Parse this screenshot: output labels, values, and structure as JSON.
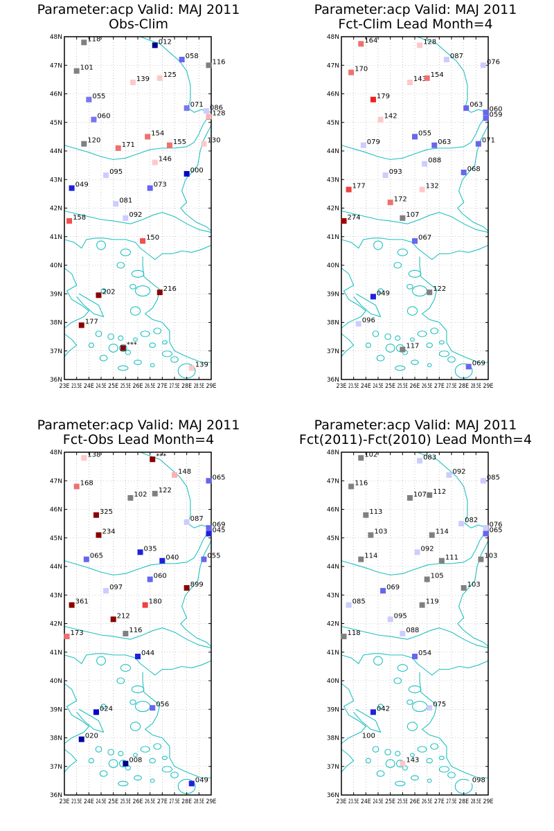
{
  "panels": [
    {
      "title_line1": "Parameter:acp Valid: MAJ 2011",
      "title_line2": "Obs-Clim",
      "chart_data": {
        "type": "scatter",
        "xlim": [
          23,
          29
        ],
        "ylim": [
          36,
          48
        ],
        "points": [
          {
            "lon": 23.8,
            "lat": 47.8,
            "label": "118",
            "color": "#808080"
          },
          {
            "lon": 26.7,
            "lat": 47.7,
            "label": "012",
            "color": "#00008b"
          },
          {
            "lon": 27.8,
            "lat": 47.2,
            "label": "058",
            "color": "#6666ee"
          },
          {
            "lon": 28.9,
            "lat": 47.0,
            "label": "116",
            "color": "#808080"
          },
          {
            "lon": 23.5,
            "lat": 46.8,
            "label": "101",
            "color": "#808080"
          },
          {
            "lon": 25.8,
            "lat": 46.4,
            "label": "139",
            "color": "#ffc8c8"
          },
          {
            "lon": 26.9,
            "lat": 46.55,
            "label": "125",
            "color": "#ffc8c8"
          },
          {
            "lon": 24.0,
            "lat": 45.8,
            "label": "055",
            "color": "#7777ee"
          },
          {
            "lon": 28.0,
            "lat": 45.5,
            "label": "071",
            "color": "#7777ee"
          },
          {
            "lon": 28.8,
            "lat": 45.4,
            "label": "086",
            "color": "#ccccff"
          },
          {
            "lon": 28.9,
            "lat": 45.2,
            "label": "128",
            "color": "#ffb0b0"
          },
          {
            "lon": 24.2,
            "lat": 45.1,
            "label": "060",
            "color": "#7777ee"
          },
          {
            "lon": 26.4,
            "lat": 44.5,
            "label": "154",
            "color": "#f07070"
          },
          {
            "lon": 23.8,
            "lat": 44.25,
            "label": "120",
            "color": "#808080"
          },
          {
            "lon": 25.2,
            "lat": 44.1,
            "label": "171",
            "color": "#f07070"
          },
          {
            "lon": 27.3,
            "lat": 44.2,
            "label": "155",
            "color": "#f07070"
          },
          {
            "lon": 28.7,
            "lat": 44.25,
            "label": "130",
            "color": "#ffc8c8"
          },
          {
            "lon": 26.7,
            "lat": 43.6,
            "label": "146",
            "color": "#ffc8c8"
          },
          {
            "lon": 28.0,
            "lat": 43.2,
            "label": "000",
            "color": "#0000cd"
          },
          {
            "lon": 24.7,
            "lat": 43.15,
            "label": "095",
            "color": "#ccccff"
          },
          {
            "lon": 23.3,
            "lat": 42.7,
            "label": "049",
            "color": "#2020dd"
          },
          {
            "lon": 26.5,
            "lat": 42.7,
            "label": "073",
            "color": "#6666ee"
          },
          {
            "lon": 25.1,
            "lat": 42.15,
            "label": "081",
            "color": "#ccccff"
          },
          {
            "lon": 23.2,
            "lat": 41.55,
            "label": "158",
            "color": "#f05050"
          },
          {
            "lon": 25.5,
            "lat": 41.65,
            "label": "092",
            "color": "#ccccff"
          },
          {
            "lon": 26.2,
            "lat": 40.85,
            "label": "150",
            "color": "#f05050"
          },
          {
            "lon": 24.4,
            "lat": 38.95,
            "label": "202",
            "color": "#8b0000"
          },
          {
            "lon": 26.9,
            "lat": 39.05,
            "label": "216",
            "color": "#8b0000"
          },
          {
            "lon": 23.7,
            "lat": 37.9,
            "label": "177",
            "color": "#8b0000"
          },
          {
            "lon": 25.4,
            "lat": 37.1,
            "label": "***",
            "color": "#8b0000"
          },
          {
            "lon": 28.2,
            "lat": 36.4,
            "label": "139",
            "color": "#ffc8c8"
          }
        ]
      }
    },
    {
      "title_line1": "Parameter:acp Valid: MAJ 2011",
      "title_line2": "Fct-Clim Lead Month=4",
      "chart_data": {
        "type": "scatter",
        "xlim": [
          23,
          29
        ],
        "ylim": [
          36,
          48
        ],
        "points": [
          {
            "lon": 23.8,
            "lat": 47.75,
            "label": "164",
            "color": "#f07070"
          },
          {
            "lon": 26.2,
            "lat": 47.7,
            "label": "128",
            "color": "#ffc8c8"
          },
          {
            "lon": 27.3,
            "lat": 47.2,
            "label": "087",
            "color": "#ccccff"
          },
          {
            "lon": 28.8,
            "lat": 47.0,
            "label": "076",
            "color": "#ccccff"
          },
          {
            "lon": 23.4,
            "lat": 46.75,
            "label": "170",
            "color": "#f07070"
          },
          {
            "lon": 25.8,
            "lat": 46.4,
            "label": "143",
            "color": "#ffc8c8"
          },
          {
            "lon": 26.5,
            "lat": 46.55,
            "label": "154",
            "color": "#f07070"
          },
          {
            "lon": 24.3,
            "lat": 45.8,
            "label": "179",
            "color": "#f02020"
          },
          {
            "lon": 28.1,
            "lat": 45.5,
            "label": "063",
            "color": "#6666ee"
          },
          {
            "lon": 28.9,
            "lat": 45.35,
            "label": "060",
            "color": "#6666ee"
          },
          {
            "lon": 28.9,
            "lat": 45.15,
            "label": "059",
            "color": "#6666ee"
          },
          {
            "lon": 24.6,
            "lat": 45.1,
            "label": "142",
            "color": "#ffc8c8"
          },
          {
            "lon": 26.0,
            "lat": 44.5,
            "label": "055",
            "color": "#6666ee"
          },
          {
            "lon": 23.9,
            "lat": 44.2,
            "label": "079",
            "color": "#ccccff"
          },
          {
            "lon": 26.8,
            "lat": 44.2,
            "label": "063",
            "color": "#6666ee"
          },
          {
            "lon": 28.6,
            "lat": 44.25,
            "label": "071",
            "color": "#6666ee"
          },
          {
            "lon": 26.4,
            "lat": 43.55,
            "label": "088",
            "color": "#ccccff"
          },
          {
            "lon": 28.0,
            "lat": 43.25,
            "label": "068",
            "color": "#6666ee"
          },
          {
            "lon": 24.8,
            "lat": 43.15,
            "label": "093",
            "color": "#ccccff"
          },
          {
            "lon": 23.3,
            "lat": 42.65,
            "label": "177",
            "color": "#f04040"
          },
          {
            "lon": 26.3,
            "lat": 42.65,
            "label": "132",
            "color": "#ffc8c8"
          },
          {
            "lon": 25.0,
            "lat": 42.2,
            "label": "172",
            "color": "#f07070"
          },
          {
            "lon": 25.5,
            "lat": 41.65,
            "label": "107",
            "color": "#808080"
          },
          {
            "lon": 23.1,
            "lat": 41.55,
            "label": "274",
            "color": "#a00000"
          },
          {
            "lon": 26.0,
            "lat": 40.85,
            "label": "067",
            "color": "#6666ee"
          },
          {
            "lon": 26.6,
            "lat": 39.05,
            "label": "122",
            "color": "#808080"
          },
          {
            "lon": 24.3,
            "lat": 38.9,
            "label": "049",
            "color": "#2020dd"
          },
          {
            "lon": 23.7,
            "lat": 37.95,
            "label": "096",
            "color": "#ccccff"
          },
          {
            "lon": 25.5,
            "lat": 37.05,
            "label": "117",
            "color": "#808080"
          },
          {
            "lon": 28.2,
            "lat": 36.45,
            "label": "069",
            "color": "#6666ee"
          }
        ]
      }
    },
    {
      "title_line1": "Parameter:acp Valid: MAJ 2011",
      "title_line2": "Fct-Obs Lead Month=4",
      "chart_data": {
        "type": "scatter",
        "xlim": [
          23,
          29
        ],
        "ylim": [
          36,
          48
        ],
        "points": [
          {
            "lon": 23.8,
            "lat": 47.8,
            "label": "138",
            "color": "#ffc8c8"
          },
          {
            "lon": 26.6,
            "lat": 47.75,
            "label": "***",
            "color": "#8b0000"
          },
          {
            "lon": 27.5,
            "lat": 47.2,
            "label": "148",
            "color": "#ffb0b0"
          },
          {
            "lon": 28.9,
            "lat": 47.0,
            "label": "065",
            "color": "#6666ee"
          },
          {
            "lon": 23.5,
            "lat": 46.8,
            "label": "168",
            "color": "#f07070"
          },
          {
            "lon": 25.7,
            "lat": 46.4,
            "label": "102",
            "color": "#808080"
          },
          {
            "lon": 26.7,
            "lat": 46.55,
            "label": "122",
            "color": "#808080"
          },
          {
            "lon": 24.3,
            "lat": 45.8,
            "label": "325",
            "color": "#8b0000"
          },
          {
            "lon": 28.0,
            "lat": 45.55,
            "label": "087",
            "color": "#ccccff"
          },
          {
            "lon": 28.9,
            "lat": 45.35,
            "label": "069",
            "color": "#6666ee"
          },
          {
            "lon": 28.9,
            "lat": 45.15,
            "label": "045",
            "color": "#2020dd"
          },
          {
            "lon": 24.4,
            "lat": 45.1,
            "label": "234",
            "color": "#8b0000"
          },
          {
            "lon": 26.1,
            "lat": 44.5,
            "label": "035",
            "color": "#2020dd"
          },
          {
            "lon": 23.9,
            "lat": 44.25,
            "label": "065",
            "color": "#6666ee"
          },
          {
            "lon": 27.0,
            "lat": 44.2,
            "label": "040",
            "color": "#2020dd"
          },
          {
            "lon": 28.7,
            "lat": 44.25,
            "label": "055",
            "color": "#6666ee"
          },
          {
            "lon": 26.5,
            "lat": 43.55,
            "label": "060",
            "color": "#6666ee"
          },
          {
            "lon": 28.0,
            "lat": 43.25,
            "label": "899",
            "color": "#8b0000"
          },
          {
            "lon": 24.7,
            "lat": 43.15,
            "label": "097",
            "color": "#ccccff"
          },
          {
            "lon": 23.3,
            "lat": 42.65,
            "label": "361",
            "color": "#8b0000"
          },
          {
            "lon": 26.3,
            "lat": 42.65,
            "label": "180",
            "color": "#f04040"
          },
          {
            "lon": 25.0,
            "lat": 42.15,
            "label": "212",
            "color": "#8b0000"
          },
          {
            "lon": 23.1,
            "lat": 41.55,
            "label": "173",
            "color": "#f07070"
          },
          {
            "lon": 25.5,
            "lat": 41.65,
            "label": "116",
            "color": "#808080"
          },
          {
            "lon": 26.0,
            "lat": 40.85,
            "label": "044",
            "color": "#2020dd"
          },
          {
            "lon": 24.3,
            "lat": 38.9,
            "label": "024",
            "color": "#0000cd"
          },
          {
            "lon": 26.6,
            "lat": 39.05,
            "label": "056",
            "color": "#6666ee"
          },
          {
            "lon": 23.7,
            "lat": 37.95,
            "label": "020",
            "color": "#0000a0"
          },
          {
            "lon": 25.5,
            "lat": 37.1,
            "label": "008",
            "color": "#00008b"
          },
          {
            "lon": 28.2,
            "lat": 36.4,
            "label": "049",
            "color": "#2020dd"
          }
        ]
      }
    },
    {
      "title_line1": "Parameter:acp Valid: MAJ 2011",
      "title_line2": "Fct(2011)-Fct(2010) Lead Month=4",
      "chart_data": {
        "type": "scatter",
        "xlim": [
          23,
          29
        ],
        "ylim": [
          36,
          48
        ],
        "points": [
          {
            "lon": 23.8,
            "lat": 47.8,
            "label": "102",
            "color": "#808080"
          },
          {
            "lon": 26.2,
            "lat": 47.7,
            "label": "083",
            "color": "#ccccff"
          },
          {
            "lon": 27.4,
            "lat": 47.2,
            "label": "092",
            "color": "#ccccff"
          },
          {
            "lon": 28.8,
            "lat": 47.0,
            "label": "085",
            "color": "#ccccff"
          },
          {
            "lon": 23.4,
            "lat": 46.8,
            "label": "116",
            "color": "#808080"
          },
          {
            "lon": 25.8,
            "lat": 46.4,
            "label": "107",
            "color": "#808080"
          },
          {
            "lon": 26.6,
            "lat": 46.5,
            "label": "112",
            "color": "#808080"
          },
          {
            "lon": 24.0,
            "lat": 45.8,
            "label": "113",
            "color": "#808080"
          },
          {
            "lon": 27.9,
            "lat": 45.5,
            "label": "082",
            "color": "#ccccff"
          },
          {
            "lon": 28.9,
            "lat": 45.35,
            "label": "076",
            "color": "#ccccff"
          },
          {
            "lon": 28.9,
            "lat": 45.15,
            "label": "065",
            "color": "#6666ee"
          },
          {
            "lon": 24.2,
            "lat": 45.1,
            "label": "103",
            "color": "#808080"
          },
          {
            "lon": 26.7,
            "lat": 45.1,
            "label": "114",
            "color": "#808080"
          },
          {
            "lon": 26.1,
            "lat": 44.5,
            "label": "092",
            "color": "#ccccff"
          },
          {
            "lon": 23.8,
            "lat": 44.25,
            "label": "114",
            "color": "#808080"
          },
          {
            "lon": 27.1,
            "lat": 44.2,
            "label": "111",
            "color": "#808080"
          },
          {
            "lon": 28.7,
            "lat": 44.25,
            "label": "103",
            "color": "#808080"
          },
          {
            "lon": 26.5,
            "lat": 43.55,
            "label": "105",
            "color": "#808080"
          },
          {
            "lon": 28.0,
            "lat": 43.25,
            "label": "103",
            "color": "#808080"
          },
          {
            "lon": 24.7,
            "lat": 43.15,
            "label": "069",
            "color": "#6666ee"
          },
          {
            "lon": 23.3,
            "lat": 42.65,
            "label": "085",
            "color": "#ccccff"
          },
          {
            "lon": 26.3,
            "lat": 42.65,
            "label": "119",
            "color": "#808080"
          },
          {
            "lon": 25.0,
            "lat": 42.15,
            "label": "095",
            "color": "#ccccff"
          },
          {
            "lon": 23.1,
            "lat": 41.55,
            "label": "118",
            "color": "#808080"
          },
          {
            "lon": 25.5,
            "lat": 41.65,
            "label": "088",
            "color": "#ccccff"
          },
          {
            "lon": 26.0,
            "lat": 40.85,
            "label": "054",
            "color": "#6666ee"
          },
          {
            "lon": 24.3,
            "lat": 38.9,
            "label": "042",
            "color": "#2020dd"
          },
          {
            "lon": 26.6,
            "lat": 39.05,
            "label": "075",
            "color": "#ccccff"
          },
          {
            "lon": 23.7,
            "lat": 37.95,
            "label": "100",
            "color": "#ffffff"
          },
          {
            "lon": 25.5,
            "lat": 37.1,
            "label": "143",
            "color": "#ffc8c8"
          },
          {
            "lon": 28.2,
            "lat": 36.4,
            "label": "098",
            "color": "#ffffff"
          }
        ]
      }
    }
  ],
  "axis": {
    "lat_ticks": [
      "36N",
      "37N",
      "38N",
      "39N",
      "40N",
      "41N",
      "42N",
      "43N",
      "44N",
      "45N",
      "46N",
      "47N",
      "48N"
    ],
    "lon_ticks": [
      "23E",
      "23.5E",
      "24E",
      "24.5E",
      "25E",
      "25.5E",
      "26E",
      "26.5E",
      "27E",
      "27.5E",
      "28E",
      "28.5E",
      "29E"
    ]
  },
  "colors": {
    "coast": "#20c0c0",
    "grid": "#999999",
    "frame": "#000000"
  }
}
